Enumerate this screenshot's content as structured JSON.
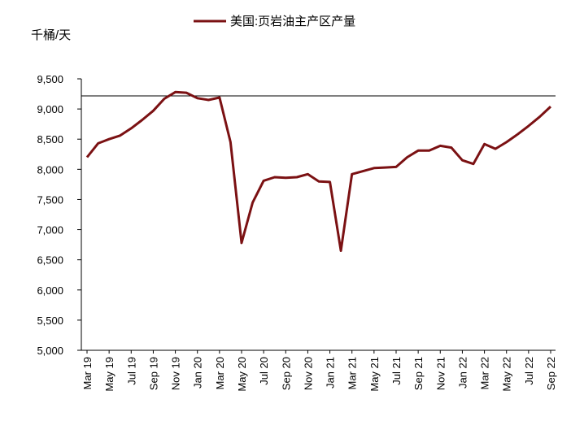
{
  "chart_data": {
    "type": "line",
    "y_label": "千桶/天",
    "categories": [
      "Mar 19",
      null,
      "May 19",
      null,
      "Jul 19",
      null,
      "Sep 19",
      null,
      "Nov 19",
      null,
      "Jan 20",
      null,
      "Mar 20",
      null,
      "May 20",
      null,
      "Jul 20",
      null,
      "Sep 20",
      null,
      "Nov 20",
      null,
      "Jan 21",
      null,
      "Mar 21",
      null,
      "May 21",
      null,
      "Jul 21",
      null,
      "Sep 21",
      null,
      "Nov 21",
      null,
      "Jan 22",
      null,
      "Mar 22",
      null,
      "May 22",
      null,
      "Jul 22",
      null,
      "Sep 22"
    ],
    "series": [
      {
        "name": "美国:页岩油主产区产量",
        "color": "#7b1113",
        "values": [
          8200,
          8430,
          8500,
          8560,
          8680,
          8820,
          8970,
          9170,
          9280,
          9270,
          9180,
          9150,
          9190,
          8450,
          6780,
          7450,
          7810,
          7870,
          7860,
          7870,
          7920,
          7800,
          7790,
          6650,
          7920,
          7970,
          8020,
          8030,
          8040,
          8200,
          8310,
          8310,
          8390,
          8360,
          8150,
          8090,
          8420,
          8340,
          8450,
          8580,
          8720,
          8870,
          9040
        ]
      }
    ],
    "ylim": [
      5000,
      9500
    ],
    "yticks": [
      {
        "value": 5000,
        "label": "5,000"
      },
      {
        "value": 5500,
        "label": "5,500"
      },
      {
        "value": 6000,
        "label": "6,000"
      },
      {
        "value": 6500,
        "label": "6,500"
      },
      {
        "value": 7000,
        "label": "7,000"
      },
      {
        "value": 7500,
        "label": "7,500"
      },
      {
        "value": 8000,
        "label": "8,000"
      },
      {
        "value": 8500,
        "label": "8,500"
      },
      {
        "value": 9000,
        "label": "9,000"
      },
      {
        "value": 9500,
        "label": "9,500"
      }
    ],
    "legend": "top"
  }
}
